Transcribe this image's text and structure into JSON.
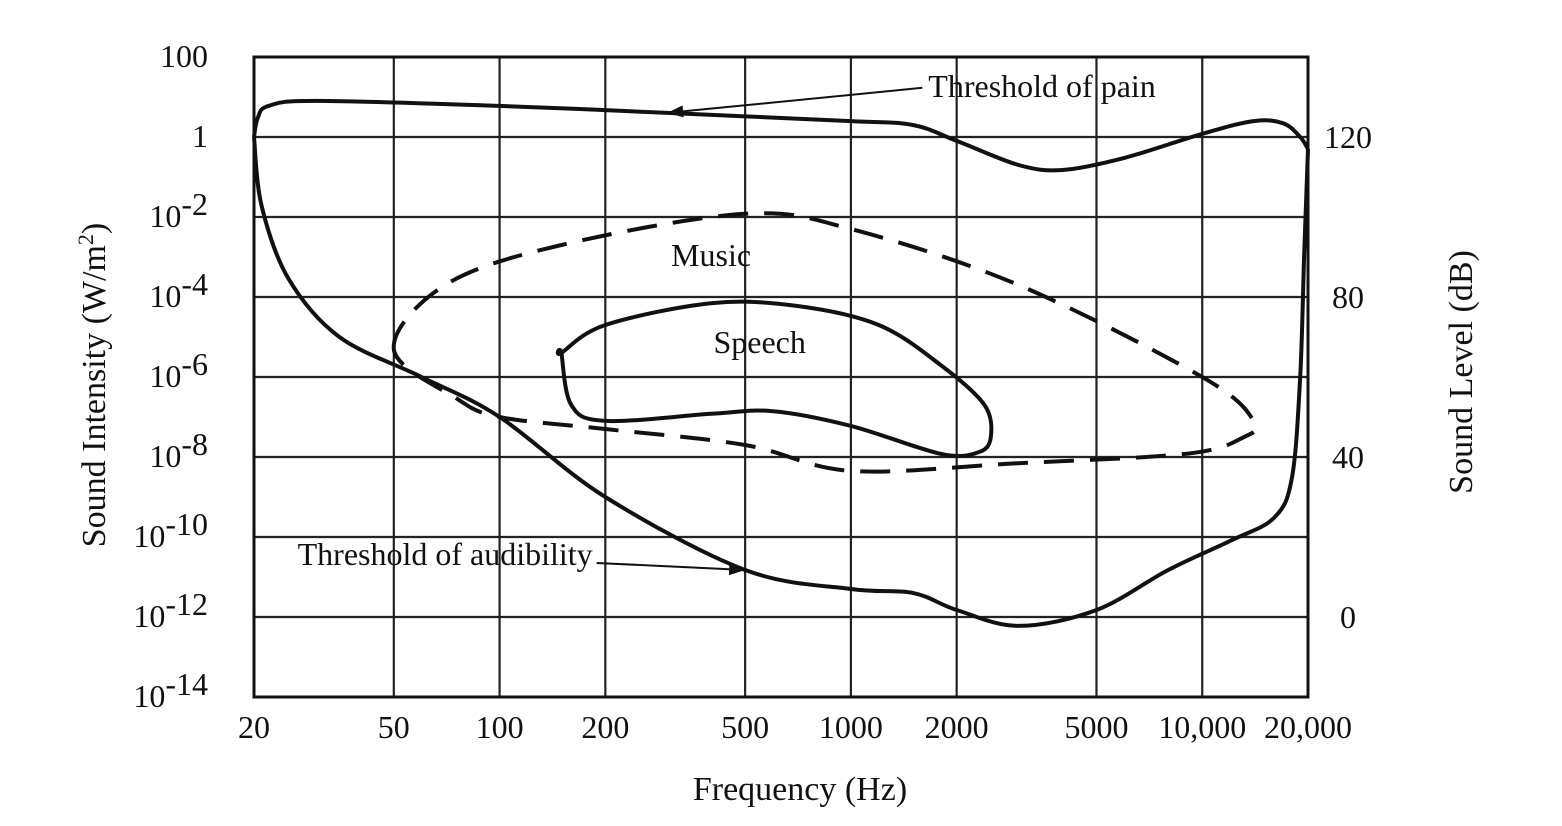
{
  "chart_data": {
    "type": "area",
    "title": "",
    "xlabel": "Frequency (Hz)",
    "ylabel": "Sound Intensity (W/m2)",
    "ylabel_right": "Sound Level (dB)",
    "x_scale": "log",
    "y_scale": "log",
    "xlim": [
      20,
      20000
    ],
    "ylim": [
      1e-14,
      100
    ],
    "grid": true,
    "x_ticks": [
      {
        "value": 20,
        "label": "20"
      },
      {
        "value": 50,
        "label": "50"
      },
      {
        "value": 100,
        "label": "100"
      },
      {
        "value": 200,
        "label": "200"
      },
      {
        "value": 500,
        "label": "500"
      },
      {
        "value": 1000,
        "label": "1000"
      },
      {
        "value": 2000,
        "label": "2000"
      },
      {
        "value": 5000,
        "label": "5000"
      },
      {
        "value": 10000,
        "label": "10,000"
      },
      {
        "value": 20000,
        "label": "20,000"
      }
    ],
    "y_ticks": [
      {
        "value": 100,
        "base": "100",
        "exp": ""
      },
      {
        "value": 1,
        "base": "1",
        "exp": ""
      },
      {
        "value": 0.01,
        "base": "10",
        "exp": "-2"
      },
      {
        "value": 0.0001,
        "base": "10",
        "exp": "-4"
      },
      {
        "value": 1e-06,
        "base": "10",
        "exp": "-6"
      },
      {
        "value": 1e-08,
        "base": "10",
        "exp": "-8"
      },
      {
        "value": 1e-10,
        "base": "10",
        "exp": "-10"
      },
      {
        "value": 1e-12,
        "base": "10",
        "exp": "-12"
      },
      {
        "value": 1e-14,
        "base": "10",
        "exp": "-14"
      }
    ],
    "y_right_ticks": [
      {
        "db": 120,
        "label": "120"
      },
      {
        "db": 80,
        "label": "80"
      },
      {
        "db": 40,
        "label": "40"
      },
      {
        "db": 0,
        "label": "0"
      }
    ],
    "series": [
      {
        "name": "Threshold of pain",
        "style": "solid",
        "points": [
          [
            20,
            1
          ],
          [
            20.5,
            3
          ],
          [
            22,
            6
          ],
          [
            30,
            8
          ],
          [
            100,
            6
          ],
          [
            300,
            4
          ],
          [
            1000,
            2.5
          ],
          [
            1500,
            2
          ],
          [
            2000,
            0.8
          ],
          [
            3000,
            0.2
          ],
          [
            4000,
            0.15
          ],
          [
            6000,
            0.3
          ],
          [
            10000,
            1.2
          ],
          [
            14000,
            2.5
          ],
          [
            17000,
            2.2
          ],
          [
            19000,
            1
          ],
          [
            20000,
            0.5
          ]
        ]
      },
      {
        "name": "Threshold of audibility",
        "style": "solid",
        "points": [
          [
            20,
            1
          ],
          [
            21,
            0.02
          ],
          [
            25,
            0.0003
          ],
          [
            35,
            1e-05
          ],
          [
            60,
            1e-06
          ],
          [
            100,
            1e-07
          ],
          [
            200,
            1e-09
          ],
          [
            500,
            1.5e-11
          ],
          [
            1000,
            5e-12
          ],
          [
            1500,
            4e-12
          ],
          [
            2000,
            1.5e-12
          ],
          [
            3000,
            6e-13
          ],
          [
            5000,
            1.5e-12
          ],
          [
            8000,
            1.5e-11
          ],
          [
            12000,
            8e-11
          ],
          [
            16000,
            3e-10
          ],
          [
            18000,
            3e-09
          ],
          [
            19000,
            1e-06
          ],
          [
            19500,
            0.001
          ],
          [
            20000,
            0.5
          ]
        ]
      },
      {
        "name": "Music",
        "style": "dashed",
        "points": [
          [
            50,
            5e-06
          ],
          [
            70,
            0.0002
          ],
          [
            150,
            0.002
          ],
          [
            500,
            0.012
          ],
          [
            1000,
            0.005
          ],
          [
            3000,
            0.0002
          ],
          [
            10000,
            1e-06
          ],
          [
            14000,
            8e-08
          ],
          [
            13000,
            3e-08
          ],
          [
            9000,
            1.2e-08
          ],
          [
            3000,
            7e-09
          ],
          [
            1000,
            4.5e-09
          ],
          [
            500,
            2e-08
          ],
          [
            200,
            5e-08
          ],
          [
            100,
            1e-07
          ],
          [
            75,
            3e-07
          ]
        ]
      },
      {
        "name": "Speech",
        "style": "solid",
        "points": [
          [
            150,
            4e-06
          ],
          [
            200,
            2e-05
          ],
          [
            400,
            7e-05
          ],
          [
            700,
            6e-05
          ],
          [
            1200,
            2e-05
          ],
          [
            1800,
            2e-06
          ],
          [
            2400,
            2e-07
          ],
          [
            2500,
            3e-08
          ],
          [
            2300,
            1.3e-08
          ],
          [
            1800,
            1.2e-08
          ],
          [
            1000,
            6e-08
          ],
          [
            600,
            1.4e-07
          ],
          [
            400,
            1.2e-07
          ],
          [
            200,
            8e-08
          ],
          [
            160,
            2e-07
          ],
          [
            150,
            4e-06
          ]
        ]
      }
    ],
    "annotations": [
      {
        "text": "Threshold of pain",
        "series": "Threshold of pain",
        "label_x": 3500,
        "label_y": 10,
        "arrow_to_x": 300,
        "arrow_to_y": 4
      },
      {
        "text": "Threshold of audibility",
        "series": "Threshold of audibility",
        "label_x": 70,
        "label_y": 2e-11,
        "arrow_to_x": 500,
        "arrow_to_y": 1.5e-11
      },
      {
        "text": "Music",
        "label_x": 400,
        "label_y": 0.0006
      },
      {
        "text": "Speech",
        "label_x": 550,
        "label_y": 4e-06
      }
    ]
  }
}
